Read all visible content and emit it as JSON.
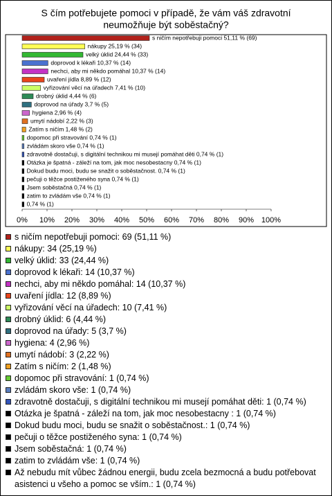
{
  "chart_data": {
    "type": "bar",
    "orientation": "horizontal",
    "title": [
      "S čím potřebujete pomoci v případě, že vám váš zdravotní",
      "neumožňuje být soběstačný?"
    ],
    "values": [
      51.11,
      25.19,
      24.44,
      10.37,
      10.37,
      8.89,
      7.41,
      4.44,
      3.7,
      2.96,
      2.22,
      1.48,
      0.74,
      0.74,
      0.74,
      0.74,
      0.74,
      0.74,
      0.74,
      0.74,
      0.74
    ],
    "value_labels": [
      "s ničím nepotřebuji pomoci 51,11 % (69)",
      "nákupy 25,19 % (34)",
      "velký úklid 24,44 % (33)",
      "doprovod k lékaři 10,37 % (14)",
      "nechci, aby mi někdo pomáhal 10,37 % (14)",
      "uvaření jídla 8,89 % (12)",
      "vyřizování věcí na úřadech 7,41 % (10)",
      "drobný úklid 4,44 % (6)",
      "doprovod na úřady 3,7 % (5)",
      "hygiena 2,96 % (4)",
      "umytí nádobí 2,22 % (3)",
      "Zatím s ničím 1,48 % (2)",
      "dopomoc při stravování 0,74 % (1)",
      "zvládám skoro vše 0,74 % (1)",
      "zdravotně dostačuji, s digitální technikou mi musejí pomáhat děti 0,74 % (1)",
      "Otázka je špatná  - záleží na tom, jak moc nesobestacny  0,74 % (1)",
      "Dokud budu moci, budu se snažit o soběstačnost. 0,74 % (1)",
      "pečuji o těžce postiženého syna 0,74 % (1)",
      "Jsem soběstačná 0,74 % (1)",
      "zatim to zvládám vše 0,74 % (1)",
      "0,74 % (1)"
    ],
    "legend_labels": [
      "s ničím nepotřebuji pomoci: 69 (51,11 %)",
      "nákupy: 34 (25,19 %)",
      "velký úklid: 33 (24,44 %)",
      "doprovod k lékaři: 14 (10,37 %)",
      "nechci, aby mi někdo pomáhal: 14 (10,37 %)",
      "uvaření jídla: 12 (8,89 %)",
      "vyřizování věcí na úřadech: 10 (7,41 %)",
      "drobný úklid: 6 (4,44 %)",
      "doprovod na úřady: 5 (3,7 %)",
      "hygiena: 4 (2,96 %)",
      "umytí nádobí: 3 (2,22 %)",
      "Zatím s ničím: 2 (1,48 %)",
      "dopomoc při stravování: 1 (0,74 %)",
      "zvládám skoro vše: 1 (0,74 %)",
      "zdravotně dostačuji, s digitální technikou mi musejí pomáhat děti: 1 (0,74 %)",
      "Otázka je špatná  - záleží na tom, jak moc nesobestacny : 1 (0,74 %)",
      "Dokud budu moci, budu se snažit o soběstačnost.: 1 (0,74 %)",
      "pečuji o těžce postiženého syna: 1 (0,74 %)",
      "Jsem soběstačná: 1 (0,74 %)",
      "zatim to zvládám vše: 1 (0,74 %)",
      "Až nebudu mít vůbec žádnou energii, budu zcela bezmocná a budu potřebovat asistenci u všeho a pomoc se vším.: 1 (0,74 %)"
    ],
    "colors": [
      "#b2221b",
      "#ffff55",
      "#33b833",
      "#4a72d0",
      "#c433c4",
      "#e8451c",
      "#ccff66",
      "#2e8b57",
      "#2f7080",
      "#cc66cc",
      "#e07020",
      "#f0a020",
      "#66cc33",
      "#5b7fc0",
      "#3355bb",
      "#000000",
      "#000000",
      "#000000",
      "#000000",
      "#000000",
      "#000000"
    ],
    "xlim": [
      0,
      100
    ],
    "xticks": [
      {
        "value": 0,
        "label": "0%"
      },
      {
        "value": 10,
        "label": "10%"
      },
      {
        "value": 20,
        "label": "20%"
      },
      {
        "value": 30,
        "label": "30%"
      },
      {
        "value": 40,
        "label": "40%"
      },
      {
        "value": 50,
        "label": "50%"
      },
      {
        "value": 60,
        "label": "60%"
      },
      {
        "value": 70,
        "label": "70%"
      },
      {
        "value": 80,
        "label": "80%"
      },
      {
        "value": 90,
        "label": "90%"
      },
      {
        "value": 100,
        "label": "100%"
      }
    ]
  }
}
